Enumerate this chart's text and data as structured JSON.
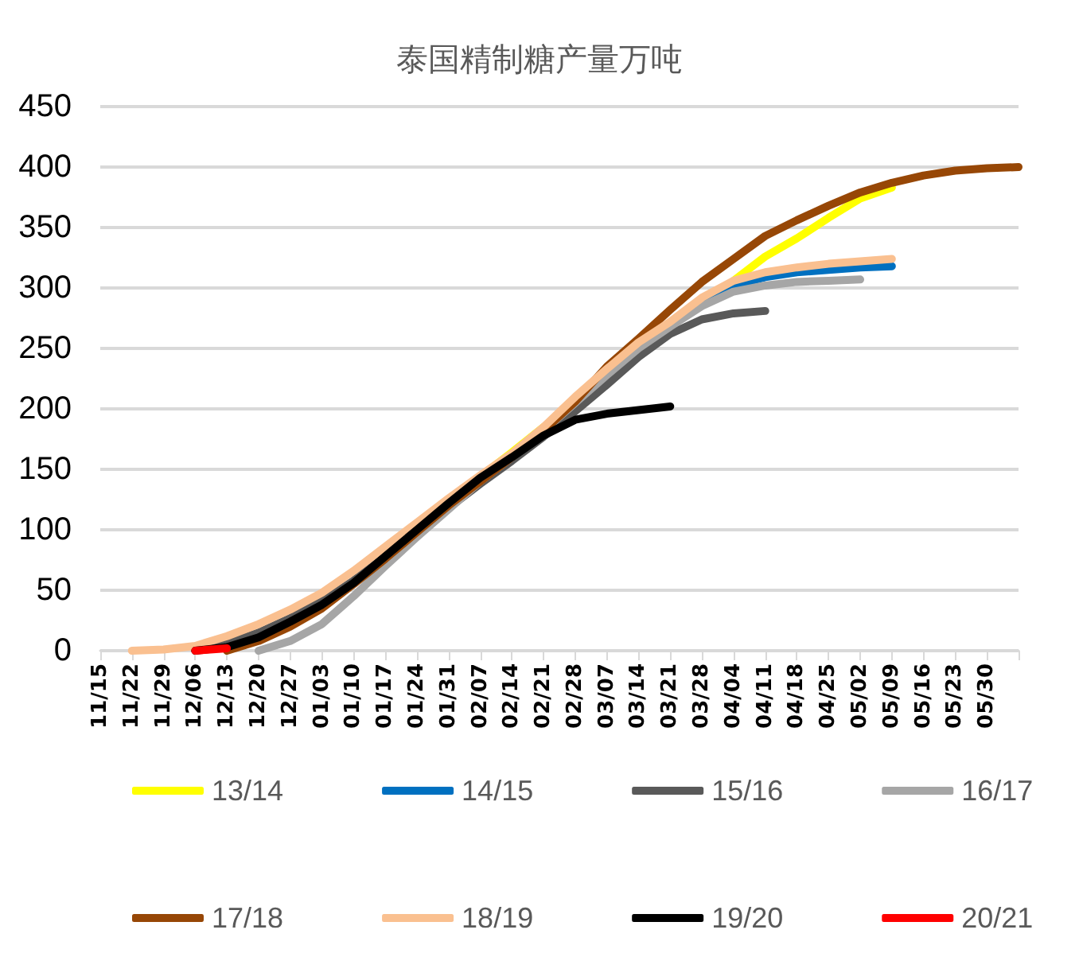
{
  "chart_data": {
    "type": "line",
    "title": "泰国精制糖产量万吨",
    "categories": [
      "11/15",
      "11/22",
      "11/29",
      "12/06",
      "12/13",
      "12/20",
      "12/27",
      "01/03",
      "01/10",
      "01/17",
      "01/24",
      "01/31",
      "02/07",
      "02/14",
      "02/21",
      "02/28",
      "03/07",
      "03/14",
      "03/21",
      "03/28",
      "04/04",
      "04/11",
      "04/18",
      "04/25",
      "05/02",
      "05/09",
      "05/16",
      "05/23",
      "05/30",
      null
    ],
    "ylim": [
      0,
      450
    ],
    "yticks": [
      0,
      50,
      100,
      150,
      200,
      250,
      300,
      350,
      400,
      450
    ],
    "grid": "y",
    "legend": "bottom",
    "marker": "none",
    "line_style": "solid",
    "series": [
      {
        "name": "13/14",
        "color": "#ffff00",
        "values": [
          null,
          null,
          null,
          null,
          null,
          null,
          null,
          null,
          null,
          null,
          null,
          null,
          144,
          164,
          185,
          null,
          null,
          null,
          null,
          null,
          306,
          326,
          341,
          358,
          374,
          383,
          null,
          null,
          null,
          null
        ]
      },
      {
        "name": "14/15",
        "color": "#0070c0",
        "values": [
          null,
          null,
          null,
          null,
          null,
          null,
          null,
          null,
          null,
          null,
          null,
          null,
          null,
          null,
          null,
          null,
          null,
          null,
          null,
          288,
          302,
          309,
          313,
          315,
          317,
          318,
          null,
          null,
          null,
          null
        ]
      },
      {
        "name": "15/16",
        "color": "#595959",
        "values": [
          null,
          null,
          null,
          0,
          6,
          15,
          27,
          41,
          58,
          78,
          98,
          118,
          138,
          157,
          177,
          198,
          220,
          243,
          262,
          274,
          279,
          281,
          null,
          null,
          null,
          null,
          null,
          null,
          null,
          null
        ]
      },
      {
        "name": "16/17",
        "color": "#a6a6a6",
        "values": [
          null,
          null,
          null,
          null,
          null,
          0,
          8,
          22,
          45,
          70,
          94,
          117,
          140,
          160,
          182,
          205,
          228,
          250,
          268,
          285,
          297,
          302,
          305,
          306,
          307,
          null,
          null,
          null,
          null,
          null
        ]
      },
      {
        "name": "17/18",
        "color": "#974706",
        "values": [
          null,
          null,
          null,
          null,
          0,
          8,
          20,
          35,
          55,
          76,
          98,
          120,
          140,
          160,
          182,
          206,
          235,
          258,
          282,
          305,
          324,
          343,
          356,
          368,
          379,
          387,
          393,
          397,
          399,
          400
        ]
      },
      {
        "name": "18/19",
        "color": "#fac090",
        "values": [
          null,
          0,
          1,
          4,
          12,
          22,
          34,
          48,
          66,
          86,
          106,
          126,
          145,
          163,
          185,
          210,
          233,
          255,
          272,
          292,
          306,
          313,
          317,
          320,
          322,
          324,
          null,
          null,
          null,
          null
        ]
      },
      {
        "name": "19/20",
        "color": "#000000",
        "values": [
          null,
          null,
          null,
          0,
          3,
          11,
          24,
          38,
          56,
          78,
          100,
          122,
          143,
          160,
          178,
          191,
          196,
          199,
          202,
          null,
          null,
          null,
          null,
          null,
          null,
          null,
          null,
          null,
          null,
          null
        ]
      },
      {
        "name": "20/21",
        "color": "#ff0000",
        "values": [
          null,
          null,
          null,
          0,
          2,
          null,
          null,
          null,
          null,
          null,
          null,
          null,
          null,
          null,
          null,
          null,
          null,
          null,
          null,
          null,
          null,
          null,
          null,
          null,
          null,
          null,
          null,
          null,
          null,
          null
        ]
      }
    ]
  }
}
